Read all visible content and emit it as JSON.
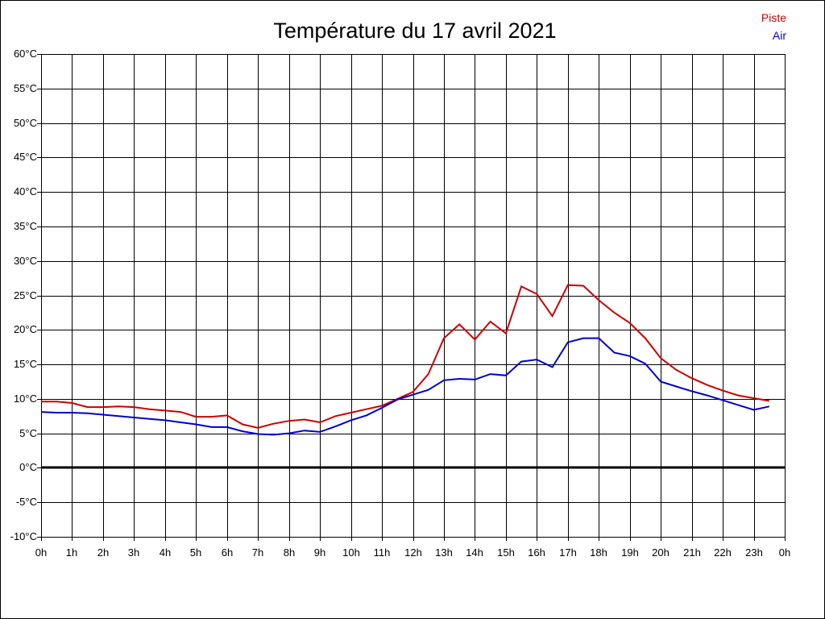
{
  "chart_data": {
    "type": "line",
    "title": "Température du 17 avril 2021",
    "xlabel": "",
    "ylabel": "",
    "x_tick_labels": [
      "0h",
      "1h",
      "2h",
      "3h",
      "4h",
      "5h",
      "6h",
      "7h",
      "8h",
      "9h",
      "10h",
      "11h",
      "12h",
      "13h",
      "14h",
      "15h",
      "16h",
      "17h",
      "18h",
      "19h",
      "20h",
      "21h",
      "22h",
      "23h",
      "0h"
    ],
    "y_tick_labels": [
      "-10°C",
      "-5°C",
      "0°C",
      "5°C",
      "10°C",
      "15°C",
      "20°C",
      "25°C",
      "30°C",
      "35°C",
      "40°C",
      "45°C",
      "50°C",
      "55°C",
      "60°C"
    ],
    "y_ticks": [
      -10,
      -5,
      0,
      5,
      10,
      15,
      20,
      25,
      30,
      35,
      40,
      45,
      50,
      55,
      60
    ],
    "xlim": [
      0,
      24
    ],
    "ylim": [
      -10,
      60
    ],
    "grid": true,
    "zero_line": true,
    "legend_position": "top-right",
    "x": [
      0,
      0.5,
      1,
      1.5,
      2,
      2.5,
      3,
      3.5,
      4,
      4.5,
      5,
      5.5,
      6,
      6.5,
      7,
      7.5,
      8,
      8.5,
      9,
      9.5,
      10,
      10.5,
      11,
      11.5,
      12,
      12.5,
      13,
      13.5,
      14,
      14.5,
      15,
      15.5,
      16,
      16.5,
      17,
      17.5,
      18,
      18.5,
      19,
      19.5,
      20,
      20.5,
      21,
      21.5,
      22,
      22.5,
      23,
      23.5
    ],
    "series": [
      {
        "name": "Piste",
        "color": "#cc0000",
        "values": [
          9.6,
          9.6,
          9.4,
          8.8,
          8.8,
          8.9,
          8.8,
          8.5,
          8.3,
          8.1,
          7.4,
          7.4,
          7.6,
          6.3,
          5.8,
          6.4,
          6.8,
          7.0,
          6.6,
          7.5,
          8.0,
          8.5,
          9.0,
          10.0,
          11.0,
          13.6,
          18.8,
          20.8,
          18.6,
          21.2,
          19.5,
          26.3,
          25.2,
          22.0,
          26.5,
          26.4,
          24.3,
          22.5,
          21.0,
          18.8,
          15.9,
          14.2,
          13.0,
          12.0,
          11.2,
          10.5,
          10.1,
          9.7
        ]
      },
      {
        "name": "Air",
        "color": "#0000cc",
        "values": [
          8.1,
          8.0,
          8.0,
          7.9,
          7.7,
          7.5,
          7.3,
          7.1,
          6.9,
          6.6,
          6.3,
          5.9,
          5.9,
          5.3,
          4.9,
          4.8,
          5.0,
          5.4,
          5.2,
          6.0,
          6.9,
          7.6,
          8.7,
          9.9,
          10.6,
          11.3,
          12.7,
          12.9,
          12.8,
          13.6,
          13.4,
          15.4,
          15.7,
          14.6,
          18.2,
          18.8,
          18.8,
          16.7,
          16.2,
          15.1,
          12.5,
          11.8,
          11.1,
          10.5,
          9.8,
          9.1,
          8.4,
          8.9
        ]
      }
    ]
  }
}
